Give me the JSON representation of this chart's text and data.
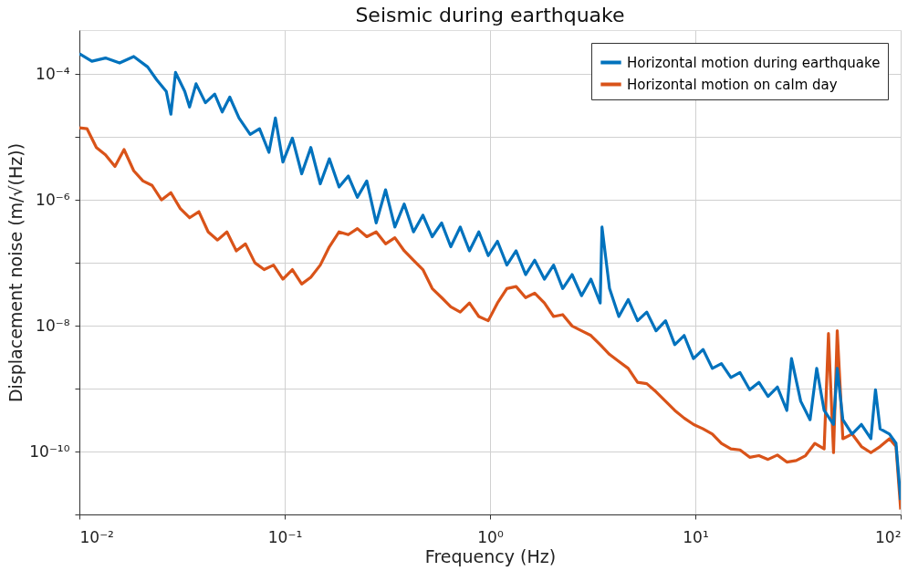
{
  "chart_data": {
    "type": "line",
    "title": "Seismic during earthquake",
    "xlabel": "Frequency (Hz)",
    "ylabel": "Displacement noise (m/√(Hz))",
    "log": "xy",
    "grid": true,
    "legend": "top right",
    "line_style": "solid",
    "marker": "none",
    "xlim": [
      0.01,
      100
    ],
    "ylim": [
      1e-11,
      0.0005
    ],
    "xticks": [
      {
        "value": 0.01,
        "label": "10⁻²"
      },
      {
        "value": 0.1,
        "label": "10⁻¹"
      },
      {
        "value": 1,
        "label": "10⁰"
      },
      {
        "value": 10,
        "label": "10¹"
      },
      {
        "value": 100,
        "label": "10²"
      }
    ],
    "yticks": [
      {
        "value": 1e-11,
        "label": null
      },
      {
        "value": 1e-10,
        "label": "10⁻¹⁰"
      },
      {
        "value": 1e-09,
        "label": null
      },
      {
        "value": 1e-08,
        "label": "10⁻⁸"
      },
      {
        "value": 1e-07,
        "label": null
      },
      {
        "value": 1e-06,
        "label": "10⁻⁶"
      },
      {
        "value": 1e-05,
        "label": null
      },
      {
        "value": 0.0001,
        "label": "10⁻⁴"
      }
    ],
    "series": [
      {
        "name": "Horizontal motion during earthquake",
        "color": "#0072bd",
        "x": [
          0.01,
          0.0115,
          0.0134,
          0.0157,
          0.0184,
          0.0215,
          0.0238,
          0.0265,
          0.0279,
          0.0294,
          0.0326,
          0.0344,
          0.037,
          0.0411,
          0.0456,
          0.0496,
          0.054,
          0.0599,
          0.0679,
          0.0754,
          0.0838,
          0.0901,
          0.098,
          0.109,
          0.121,
          0.134,
          0.149,
          0.165,
          0.184,
          0.204,
          0.226,
          0.251,
          0.279,
          0.31,
          0.344,
          0.382,
          0.424,
          0.471,
          0.523,
          0.581,
          0.644,
          0.716,
          0.794,
          0.882,
          0.98,
          1.087,
          1.208,
          1.34,
          1.49,
          1.65,
          1.84,
          2.04,
          2.26,
          2.51,
          2.79,
          3.1,
          3.44,
          3.51,
          3.82,
          4.24,
          4.71,
          5.23,
          5.8,
          6.44,
          7.16,
          7.94,
          8.82,
          9.79,
          10.9,
          12.1,
          13.4,
          14.9,
          16.5,
          18.4,
          20.4,
          22.6,
          25.1,
          27.9,
          29.4,
          32.6,
          36.2,
          39.0,
          42.4,
          47.1,
          49.1,
          52.3,
          58.0,
          64.4,
          71.6,
          75.4,
          79.4,
          88.2,
          94.9,
          100
        ],
        "values": [
          0.00021,
          0.00016,
          0.00018,
          0.00015,
          0.00019,
          0.00013,
          8.1e-05,
          5.3e-05,
          2.3e-05,
          0.000106,
          5.3e-05,
          3e-05,
          7e-05,
          3.5e-05,
          4.8e-05,
          2.5e-05,
          4.3e-05,
          2e-05,
          1.1e-05,
          1.35e-05,
          5.7e-06,
          2e-05,
          4e-06,
          9.6e-06,
          2.6e-06,
          6.8e-06,
          1.8e-06,
          4.5e-06,
          1.6e-06,
          2.4e-06,
          1.1e-06,
          2e-06,
          4.3e-07,
          1.45e-06,
          3.7e-07,
          8.6e-07,
          3.1e-07,
          5.7e-07,
          2.6e-07,
          4.3e-07,
          1.8e-07,
          3.7e-07,
          1.55e-07,
          3.1e-07,
          1.3e-07,
          2.2e-07,
          9.2e-08,
          1.55e-07,
          6.5e-08,
          1.1e-07,
          5.5e-08,
          9.2e-08,
          3.9e-08,
          6.5e-08,
          3e-08,
          5.5e-08,
          2.3e-08,
          3.7e-07,
          3.9e-08,
          1.4e-08,
          2.6e-08,
          1.2e-08,
          1.65e-08,
          8.3e-09,
          1.2e-08,
          5e-09,
          7e-09,
          3e-09,
          4.2e-09,
          2.1e-09,
          2.5e-09,
          1.5e-09,
          1.8e-09,
          9.6e-10,
          1.26e-09,
          7.5e-10,
          1.06e-09,
          4.5e-10,
          3e-09,
          6.3e-10,
          3.2e-10,
          2.1e-09,
          4.5e-10,
          2.7e-10,
          2.1e-09,
          3.2e-10,
          1.9e-10,
          2.7e-10,
          1.6e-10,
          9.6e-10,
          2.3e-10,
          1.9e-10,
          1.35e-10,
          1.7e-11
        ]
      },
      {
        "name": "Horizontal motion on calm day",
        "color": "#d95319",
        "x": [
          0.01,
          0.0109,
          0.0121,
          0.0134,
          0.0149,
          0.0165,
          0.0184,
          0.0204,
          0.0226,
          0.0251,
          0.0279,
          0.031,
          0.0344,
          0.0382,
          0.0424,
          0.0471,
          0.0523,
          0.0581,
          0.0644,
          0.0716,
          0.0794,
          0.0882,
          0.098,
          0.109,
          0.121,
          0.134,
          0.149,
          0.165,
          0.184,
          0.204,
          0.226,
          0.251,
          0.279,
          0.31,
          0.344,
          0.382,
          0.424,
          0.471,
          0.523,
          0.581,
          0.644,
          0.716,
          0.794,
          0.882,
          0.98,
          1.087,
          1.208,
          1.34,
          1.49,
          1.65,
          1.84,
          2.04,
          2.26,
          2.51,
          2.79,
          3.1,
          3.44,
          3.82,
          4.24,
          4.71,
          5.23,
          5.8,
          6.44,
          7.16,
          7.94,
          8.82,
          9.79,
          10.9,
          12.1,
          13.4,
          14.9,
          16.5,
          18.4,
          20.4,
          22.6,
          25.1,
          27.9,
          31.0,
          34.4,
          38.2,
          42.4,
          44.5,
          47.1,
          49.1,
          52.3,
          58.0,
          64.4,
          71.6,
          79.4,
          88.2,
          94.9,
          100
        ],
        "values": [
          1.4e-05,
          1.35e-05,
          6.8e-06,
          5.2e-06,
          3.4e-06,
          6.3e-06,
          2.9e-06,
          2e-06,
          1.7e-06,
          1e-06,
          1.3e-06,
          7.3e-07,
          5.2e-07,
          6.5e-07,
          3.1e-07,
          2.3e-07,
          3.1e-07,
          1.55e-07,
          2e-07,
          1e-07,
          7.8e-08,
          9.2e-08,
          5.5e-08,
          7.8e-08,
          4.6e-08,
          5.9e-08,
          9.2e-08,
          1.8e-07,
          3.1e-07,
          2.8e-07,
          3.5e-07,
          2.6e-07,
          3.1e-07,
          2e-07,
          2.5e-07,
          1.55e-07,
          1.1e-07,
          7.8e-08,
          3.9e-08,
          2.8e-08,
          2e-08,
          1.65e-08,
          2.3e-08,
          1.4e-08,
          1.2e-08,
          2.3e-08,
          3.9e-08,
          4.2e-08,
          2.8e-08,
          3.3e-08,
          2.3e-08,
          1.4e-08,
          1.5e-08,
          9.9e-09,
          8.3e-09,
          7e-09,
          5e-09,
          3.5e-09,
          2.7e-09,
          2.1e-09,
          1.26e-09,
          1.2e-09,
          8.9e-10,
          6.3e-10,
          4.5e-10,
          3.4e-10,
          2.7e-10,
          2.3e-10,
          1.9e-10,
          1.35e-10,
          1.1e-10,
          1.06e-10,
          8.1e-11,
          8.6e-11,
          7.5e-11,
          8.8e-11,
          6.8e-11,
          7.2e-11,
          8.6e-11,
          1.35e-10,
          1.1e-10,
          7.5e-09,
          9.6e-11,
          8.3e-09,
          1.6e-10,
          1.9e-10,
          1.2e-10,
          9.6e-11,
          1.2e-10,
          1.6e-10,
          1.2e-10,
          1.2e-11
        ]
      }
    ]
  }
}
